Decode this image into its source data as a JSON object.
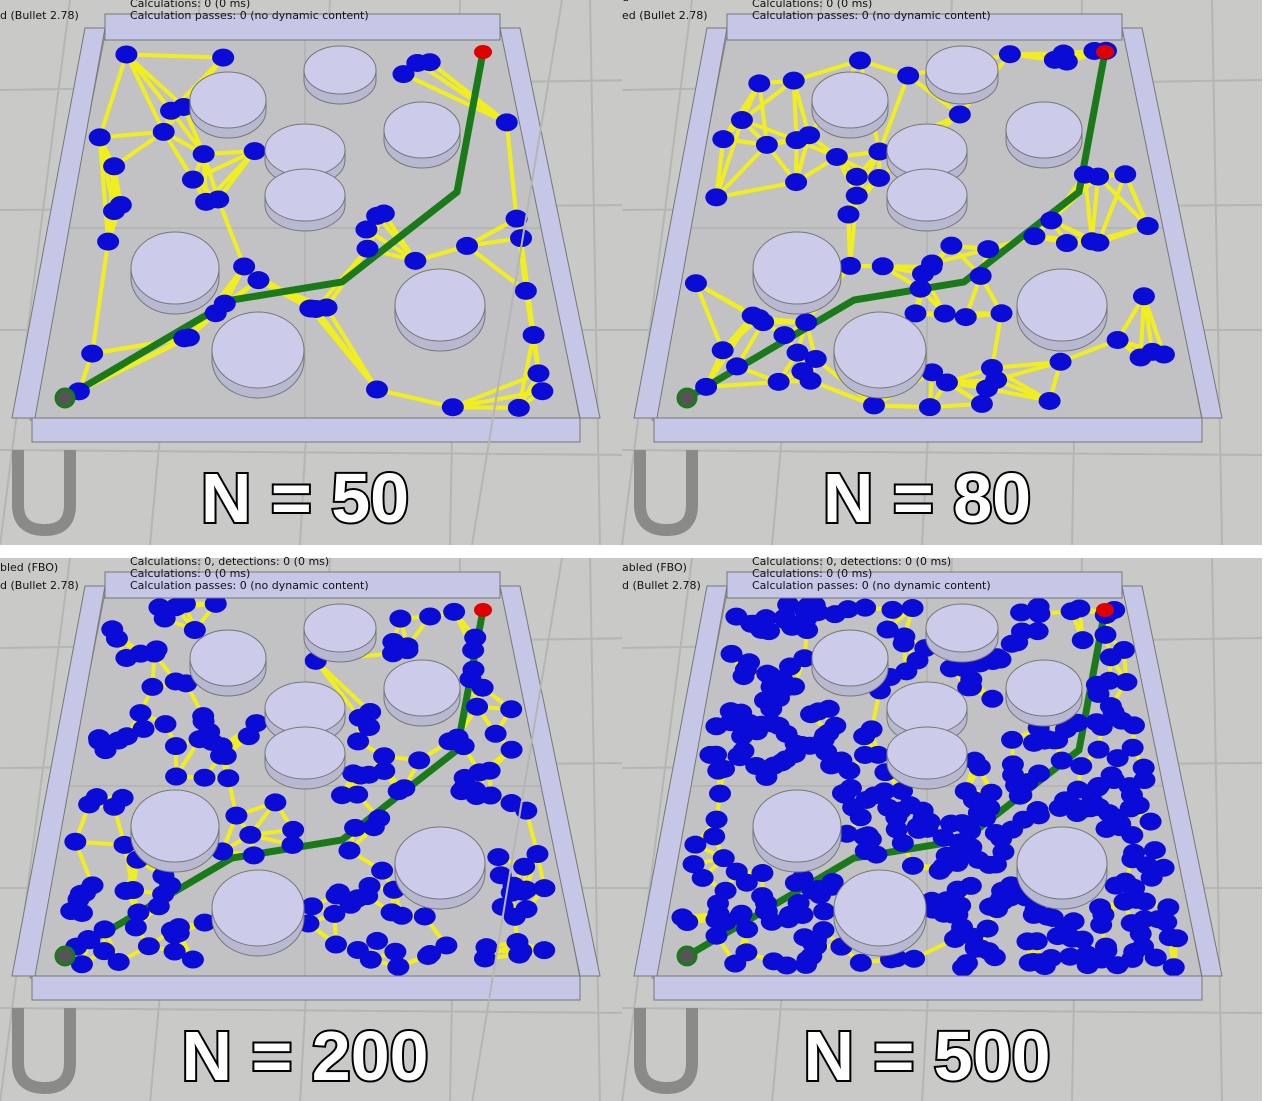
{
  "panels": [
    {
      "label": "N = 50",
      "left_text": [
        "d (Bullet 2.78)"
      ],
      "status_lines": [
        "Calculations: 0 (0 ms)",
        "Calculation passes: 0 (no dynamic content)"
      ]
    },
    {
      "label": "N = 80",
      "left_text": [
        "d",
        "ed (Bullet 2.78)"
      ],
      "status_lines": [
        "Calculations: 0 (0 ms)",
        "Calculation passes: 0 (no dynamic content)"
      ]
    },
    {
      "label": "N = 200",
      "left_text": [
        "bled (FBO)",
        "d (Bullet 2.78)"
      ],
      "status_lines": [
        "Calculations: 0, detections: 0 (0 ms)",
        "Calculations: 0 (0 ms)",
        "Calculation passes: 0 (no dynamic content)"
      ]
    },
    {
      "label": "N = 500",
      "left_text": [
        "abled (FBO)",
        "d (Bullet 2.78)"
      ],
      "status_lines": [
        "Calculations: 0, detections: 0 (0 ms)",
        "Calculations: 0 (0 ms)",
        "Calculation passes: 0 (no dynamic content)"
      ]
    }
  ]
}
